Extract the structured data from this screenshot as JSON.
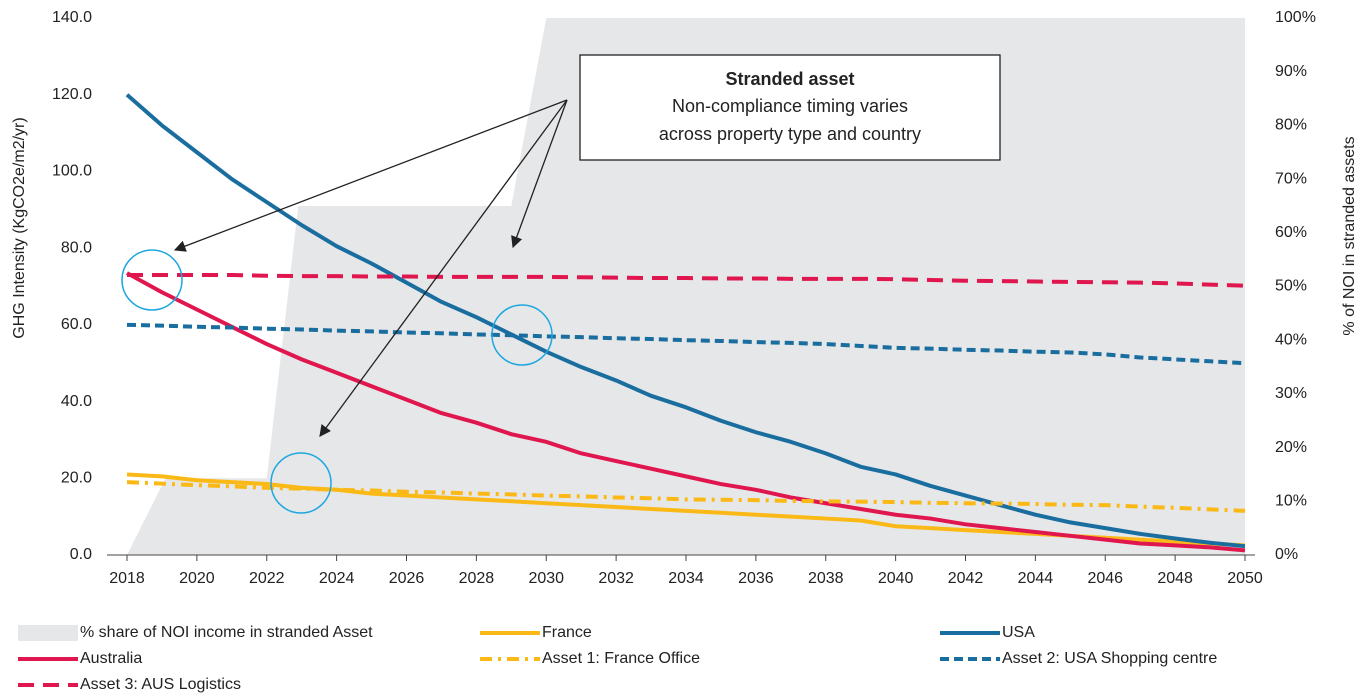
{
  "chart_data": {
    "type": "line",
    "ylabel": "GHG Intensity (KgCO2e/m2/yr)",
    "y2label": "% of NOI in stranded assets",
    "x": [
      2018,
      2019,
      2020,
      2021,
      2022,
      2023,
      2024,
      2025,
      2026,
      2027,
      2028,
      2029,
      2030,
      2031,
      2032,
      2033,
      2034,
      2035,
      2036,
      2037,
      2038,
      2039,
      2040,
      2041,
      2042,
      2043,
      2044,
      2045,
      2046,
      2047,
      2048,
      2049,
      2050
    ],
    "xlim": [
      2018,
      2050
    ],
    "xticks": [
      2018,
      2020,
      2022,
      2024,
      2026,
      2028,
      2030,
      2032,
      2034,
      2036,
      2038,
      2040,
      2042,
      2044,
      2046,
      2048,
      2050
    ],
    "ylim": [
      0,
      140
    ],
    "yticks": [
      {
        "value": 0,
        "label": "0.0"
      },
      {
        "value": 20,
        "label": "20.0"
      },
      {
        "value": 40,
        "label": "40.0"
      },
      {
        "value": 60,
        "label": "60.0"
      },
      {
        "value": 80,
        "label": "80.0"
      },
      {
        "value": 100,
        "label": "100.0"
      },
      {
        "value": 120,
        "label": "120.0"
      },
      {
        "value": 140,
        "label": "140.0"
      }
    ],
    "y2lim": [
      0,
      100
    ],
    "y2ticks": [
      {
        "value": 0,
        "label": "0%"
      },
      {
        "value": 10,
        "label": "10%"
      },
      {
        "value": 20,
        "label": "20%"
      },
      {
        "value": 30,
        "label": "30%"
      },
      {
        "value": 40,
        "label": "40%"
      },
      {
        "value": 50,
        "label": "50%"
      },
      {
        "value": 60,
        "label": "60%"
      },
      {
        "value": 70,
        "label": "70%"
      },
      {
        "value": 80,
        "label": "80%"
      },
      {
        "value": 90,
        "label": "90%"
      },
      {
        "value": 100,
        "label": "100%"
      }
    ],
    "series": [
      {
        "name": "% share of NOI income in stranded Asset",
        "color": "#e6e7e8",
        "style": "area",
        "axis": "y2",
        "x": [
          2018,
          2019.1,
          2022,
          2022.9,
          2029,
          2030,
          2050
        ],
        "values": [
          0,
          14.3,
          14.3,
          65,
          65,
          100,
          100
        ]
      },
      {
        "name": "France",
        "color": "#fbb917",
        "style": "solid",
        "values": [
          21,
          20.5,
          19.5,
          19,
          18.5,
          17.5,
          17,
          16,
          15.5,
          15,
          14.5,
          14,
          13.5,
          13,
          12.5,
          12,
          11.5,
          11,
          10.5,
          10,
          9.5,
          9,
          7.5,
          7,
          6.5,
          6,
          5.5,
          5,
          4.5,
          4,
          3.5,
          3,
          2.5
        ]
      },
      {
        "name": "USA",
        "color": "#1a6e9f",
        "style": "solid",
        "values": [
          120,
          112,
          105,
          98,
          92,
          86,
          80.5,
          76,
          71,
          66,
          62,
          57.5,
          53,
          49,
          45.5,
          41.5,
          38.5,
          35,
          32,
          29.5,
          26.5,
          23,
          21,
          18,
          15.5,
          13,
          10.5,
          8.5,
          7,
          5.5,
          4.3,
          3.2,
          2.3
        ]
      },
      {
        "name": "Australia",
        "color": "#e0174f",
        "style": "solid",
        "values": [
          73.5,
          68.5,
          64,
          59.5,
          55,
          51,
          47.5,
          44,
          40.5,
          37,
          34.5,
          31.5,
          29.5,
          26.5,
          24.5,
          22.5,
          20.5,
          18.5,
          17,
          15,
          13.5,
          12,
          10.5,
          9.5,
          8,
          7,
          6,
          5,
          4,
          3,
          2.5,
          2,
          1.2
        ]
      },
      {
        "name": "Asset 1: France Office",
        "color": "#fbb917",
        "style": "dashdot",
        "values": [
          19,
          18.6,
          18.2,
          17.9,
          17.5,
          17.3,
          17,
          16.8,
          16.5,
          16.3,
          16,
          15.8,
          15.5,
          15.3,
          15,
          14.8,
          14.5,
          14.4,
          14.3,
          14.1,
          14,
          13.9,
          13.8,
          13.6,
          13.5,
          13.4,
          13.3,
          13.1,
          13,
          12.6,
          12.3,
          11.9,
          11.5
        ]
      },
      {
        "name": "Asset 2: USA Shopping centre",
        "color": "#1a6e9f",
        "style": "dashed",
        "values": [
          60,
          59.8,
          59.5,
          59.3,
          59,
          58.8,
          58.5,
          58.3,
          58,
          57.8,
          57.5,
          57.3,
          57,
          56.8,
          56.5,
          56.3,
          56,
          55.8,
          55.5,
          55.3,
          55,
          54.5,
          54,
          53.8,
          53.5,
          53.3,
          53,
          52.8,
          52.3,
          51.5,
          51,
          50.5,
          50
        ]
      },
      {
        "name": "Asset 3: AUS Logistics",
        "color": "#e0174f",
        "style": "longdash",
        "values": [
          73,
          73,
          73,
          73,
          72.8,
          72.7,
          72.7,
          72.6,
          72.6,
          72.5,
          72.5,
          72.5,
          72.5,
          72.4,
          72.3,
          72.2,
          72.2,
          72.1,
          72.1,
          72,
          72,
          72,
          71.9,
          71.7,
          71.5,
          71.4,
          71.3,
          71.2,
          71.1,
          71,
          70.8,
          70.5,
          70.2
        ]
      }
    ],
    "annotation": {
      "title": "Stranded asset",
      "lines": [
        "Non-compliance timing varies",
        "across property type and country"
      ]
    }
  }
}
